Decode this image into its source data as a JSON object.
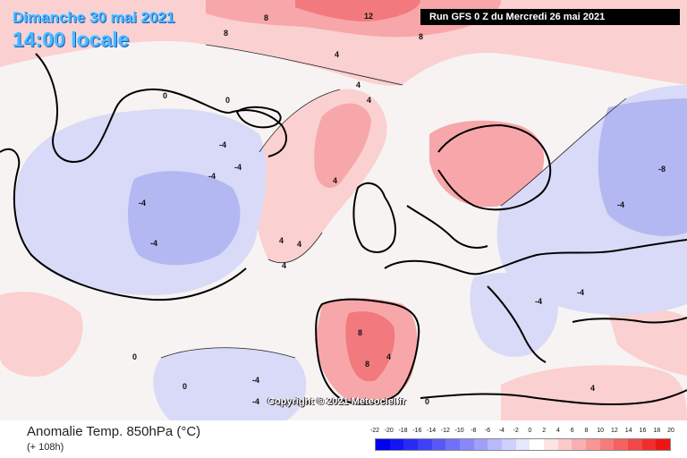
{
  "header": {
    "date": "Dimanche 30 mai 2021",
    "local_time": "14:00 locale",
    "run": "Run GFS 0 Z du Mercredi 26 mai 2021"
  },
  "map": {
    "copyright": "Copyright © 2021 Meteociel.fr",
    "contour_labels": [
      {
        "text": "12"
      },
      {
        "text": "8"
      },
      {
        "text": "8"
      },
      {
        "text": "8"
      },
      {
        "text": "4"
      },
      {
        "text": "4"
      },
      {
        "text": "0"
      },
      {
        "text": "0"
      },
      {
        "text": "-4"
      },
      {
        "text": "-4"
      },
      {
        "text": "-4"
      },
      {
        "text": "-4"
      },
      {
        "text": "-4"
      },
      {
        "text": "4"
      },
      {
        "text": "4"
      },
      {
        "text": "4"
      },
      {
        "text": "4"
      },
      {
        "text": "4"
      },
      {
        "text": "-8"
      },
      {
        "text": "-4"
      },
      {
        "text": "-4"
      },
      {
        "text": "8"
      },
      {
        "text": "8"
      },
      {
        "text": "4"
      },
      {
        "text": "0"
      },
      {
        "text": "0"
      },
      {
        "text": "-4"
      },
      {
        "text": "-4"
      },
      {
        "text": "4"
      },
      {
        "text": "-4"
      },
      {
        "text": "0"
      }
    ],
    "colors": {
      "warm_strong": "#f27a7e",
      "warm": "#f7a7a9",
      "warm_light": "#fbd0d1",
      "neutral": "#f7f3f3",
      "cool_light": "#d8daf7",
      "cool": "#b3b7f2",
      "coastline": "#000000"
    }
  },
  "footer": {
    "title": "Anomalie Temp. 850hPa (°C)",
    "subtitle": "(+ 108h)"
  },
  "legend": {
    "labels": [
      "-22",
      "-20",
      "-18",
      "-16",
      "-14",
      "-12",
      "-10",
      "-8",
      "-6",
      "-4",
      "-2",
      "0",
      "2",
      "4",
      "6",
      "8",
      "10",
      "12",
      "14",
      "16",
      "18",
      "20"
    ],
    "colors": [
      "#0000f0",
      "#1414f4",
      "#2a2af5",
      "#4040f6",
      "#5858f7",
      "#7070f8",
      "#8888f9",
      "#a0a0fa",
      "#b8b8fb",
      "#d0d0fc",
      "#e8e8fd",
      "#ffffff",
      "#fde4e4",
      "#fccaca",
      "#fab0b0",
      "#f89696",
      "#f67c7c",
      "#f46262",
      "#f24848",
      "#f02e2e",
      "#ee1414"
    ]
  }
}
